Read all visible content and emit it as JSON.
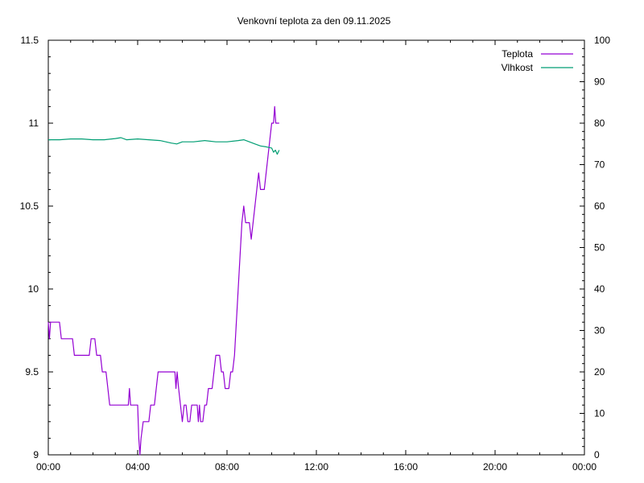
{
  "chart_data": {
    "type": "line",
    "title": "Venkovní teplota za den 09.11.2025",
    "xlabel": "",
    "ylabel": "",
    "y2label": "",
    "x_range": [
      "00:00",
      "24:00"
    ],
    "x_tick_labels": [
      "00:00",
      "04:00",
      "08:00",
      "12:00",
      "16:00",
      "20:00",
      "00:00"
    ],
    "ylim": [
      9,
      11.5
    ],
    "y_tick_labels": [
      "9",
      "9.5",
      "10",
      "10.5",
      "11",
      "11.5"
    ],
    "y2lim": [
      0,
      100
    ],
    "y2_tick_labels": [
      "0",
      "10",
      "20",
      "30",
      "40",
      "50",
      "60",
      "70",
      "80",
      "90",
      "100"
    ],
    "grid": false,
    "legend_position": "top-right",
    "series": [
      {
        "name": "Teplota",
        "axis": "left",
        "color": "#9400d3",
        "points": [
          [
            "00:00",
            9.8
          ],
          [
            "00:03",
            9.7
          ],
          [
            "00:06",
            9.8
          ],
          [
            "00:30",
            9.8
          ],
          [
            "00:35",
            9.7
          ],
          [
            "01:05",
            9.7
          ],
          [
            "01:10",
            9.6
          ],
          [
            "01:50",
            9.6
          ],
          [
            "01:55",
            9.7
          ],
          [
            "02:05",
            9.7
          ],
          [
            "02:10",
            9.6
          ],
          [
            "02:20",
            9.6
          ],
          [
            "02:25",
            9.5
          ],
          [
            "02:35",
            9.5
          ],
          [
            "02:40",
            9.4
          ],
          [
            "02:45",
            9.3
          ],
          [
            "03:35",
            9.3
          ],
          [
            "03:38",
            9.4
          ],
          [
            "03:41",
            9.3
          ],
          [
            "04:00",
            9.3
          ],
          [
            "04:03",
            9.1
          ],
          [
            "04:06",
            9.0
          ],
          [
            "04:09",
            9.1
          ],
          [
            "04:15",
            9.2
          ],
          [
            "04:30",
            9.2
          ],
          [
            "04:35",
            9.3
          ],
          [
            "04:45",
            9.3
          ],
          [
            "04:50",
            9.4
          ],
          [
            "04:55",
            9.5
          ],
          [
            "05:40",
            9.5
          ],
          [
            "05:43",
            9.4
          ],
          [
            "05:46",
            9.5
          ],
          [
            "05:50",
            9.4
          ],
          [
            "05:55",
            9.3
          ],
          [
            "06:00",
            9.2
          ],
          [
            "06:05",
            9.3
          ],
          [
            "06:10",
            9.3
          ],
          [
            "06:15",
            9.2
          ],
          [
            "06:20",
            9.2
          ],
          [
            "06:25",
            9.3
          ],
          [
            "06:40",
            9.3
          ],
          [
            "06:43",
            9.2
          ],
          [
            "06:46",
            9.3
          ],
          [
            "06:49",
            9.2
          ],
          [
            "06:55",
            9.2
          ],
          [
            "07:00",
            9.3
          ],
          [
            "07:05",
            9.3
          ],
          [
            "07:10",
            9.4
          ],
          [
            "07:20",
            9.4
          ],
          [
            "07:25",
            9.5
          ],
          [
            "07:30",
            9.6
          ],
          [
            "07:40",
            9.6
          ],
          [
            "07:45",
            9.5
          ],
          [
            "07:50",
            9.5
          ],
          [
            "07:55",
            9.4
          ],
          [
            "08:05",
            9.4
          ],
          [
            "08:10",
            9.5
          ],
          [
            "08:15",
            9.5
          ],
          [
            "08:20",
            9.6
          ],
          [
            "08:25",
            9.8
          ],
          [
            "08:30",
            10.0
          ],
          [
            "08:35",
            10.2
          ],
          [
            "08:40",
            10.4
          ],
          [
            "08:45",
            10.5
          ],
          [
            "08:50",
            10.4
          ],
          [
            "09:00",
            10.4
          ],
          [
            "09:05",
            10.3
          ],
          [
            "09:10",
            10.4
          ],
          [
            "09:15",
            10.5
          ],
          [
            "09:20",
            10.6
          ],
          [
            "09:25",
            10.7
          ],
          [
            "09:30",
            10.6
          ],
          [
            "09:40",
            10.6
          ],
          [
            "09:45",
            10.7
          ],
          [
            "09:50",
            10.8
          ],
          [
            "09:55",
            10.9
          ],
          [
            "10:00",
            11.0
          ],
          [
            "10:05",
            11.0
          ],
          [
            "10:08",
            11.1
          ],
          [
            "10:11",
            11.0
          ],
          [
            "10:20",
            11.0
          ]
        ]
      },
      {
        "name": "Vlhkost",
        "axis": "right",
        "color": "#009e73",
        "points": [
          [
            "00:00",
            76.0
          ],
          [
            "00:30",
            76.0
          ],
          [
            "01:00",
            76.2
          ],
          [
            "01:30",
            76.2
          ],
          [
            "02:00",
            76.0
          ],
          [
            "02:30",
            76.0
          ],
          [
            "03:00",
            76.3
          ],
          [
            "03:15",
            76.5
          ],
          [
            "03:30",
            76.0
          ],
          [
            "04:00",
            76.2
          ],
          [
            "04:30",
            76.0
          ],
          [
            "05:00",
            75.8
          ],
          [
            "05:30",
            75.2
          ],
          [
            "05:45",
            75.0
          ],
          [
            "06:00",
            75.5
          ],
          [
            "06:30",
            75.5
          ],
          [
            "07:00",
            75.8
          ],
          [
            "07:30",
            75.5
          ],
          [
            "08:00",
            75.5
          ],
          [
            "08:30",
            75.8
          ],
          [
            "08:45",
            76.0
          ],
          [
            "09:00",
            75.5
          ],
          [
            "09:15",
            75.0
          ],
          [
            "09:30",
            74.5
          ],
          [
            "09:45",
            74.3
          ],
          [
            "10:00",
            74.0
          ],
          [
            "10:05",
            73.0
          ],
          [
            "10:10",
            73.5
          ],
          [
            "10:15",
            72.5
          ],
          [
            "10:20",
            73.5
          ]
        ]
      }
    ]
  }
}
